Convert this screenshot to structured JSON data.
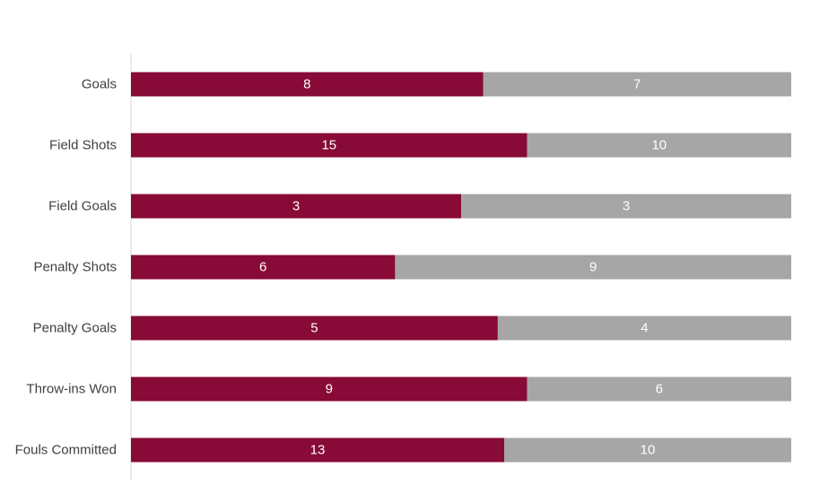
{
  "chart_data": {
    "type": "bar",
    "orientation": "horizontal",
    "stacking": "percent",
    "categories": [
      "Goals",
      "Field Shots",
      "Field Goals",
      "Penalty Shots",
      "Penalty Goals",
      "Throw-ins Won",
      "Fouls Committed"
    ],
    "series": [
      {
        "values": [
          8,
          15,
          3,
          6,
          5,
          9,
          13
        ],
        "color": "#870A37"
      },
      {
        "values": [
          7,
          10,
          3,
          9,
          4,
          6,
          10
        ],
        "color": "#A6A6A6"
      }
    ],
    "title": "",
    "xlabel": "",
    "ylabel": "",
    "data_labels": true,
    "legend": "none",
    "grid": false
  }
}
